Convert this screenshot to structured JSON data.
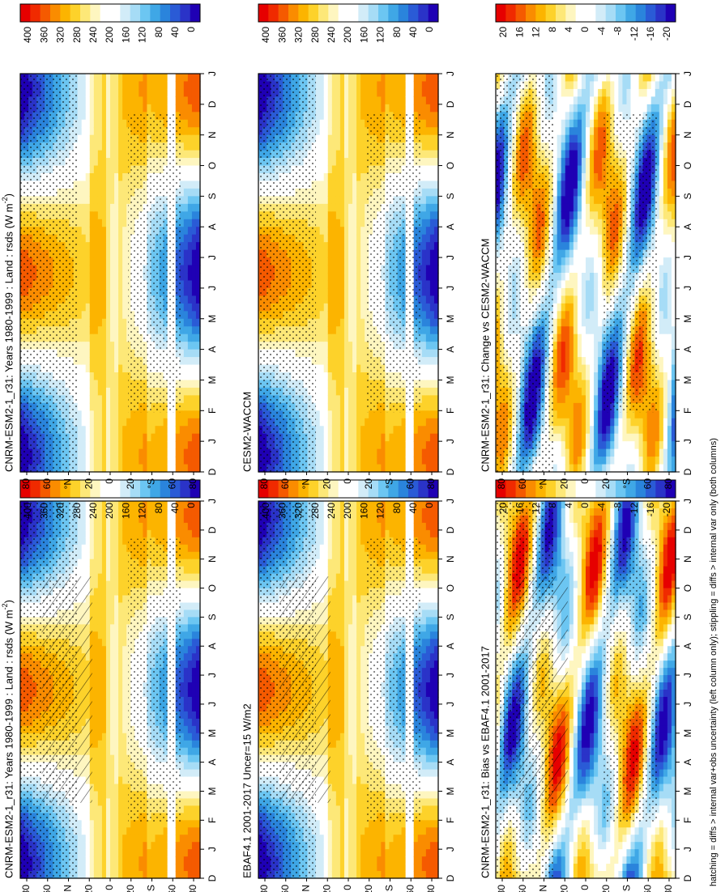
{
  "footer": "hatching = diffs > internal var+obs uncertainty (left column only); stippling = diffs > internal var only (both columns)",
  "colorbars": {
    "abs": {
      "labels": [
        "400",
        "360",
        "320",
        "280",
        "240",
        "200",
        "160",
        "120",
        "80",
        "40",
        "0"
      ],
      "colors": [
        "#e60000",
        "#f02a00",
        "#f55a00",
        "#fa8c00",
        "#fcb400",
        "#fdd22a",
        "#fde878",
        "#fef6c0",
        "#ffffff",
        "#ffffff",
        "#d2ecf8",
        "#a6dcf6",
        "#6cc6f2",
        "#3fa7e6",
        "#2a84dc",
        "#2a5bd6",
        "#2a33c8",
        "#1f00b4"
      ]
    },
    "diff": {
      "labels": [
        "20",
        "16",
        "12",
        "8",
        "4",
        "0",
        "-4",
        "-8",
        "-12",
        "-16",
        "-20"
      ],
      "colors": [
        "#e60000",
        "#f02a00",
        "#f55a00",
        "#fa8c00",
        "#fcb400",
        "#fdd22a",
        "#fde878",
        "#fef6c0",
        "#ffffff",
        "#ffffff",
        "#d2ecf8",
        "#a6dcf6",
        "#6cc6f2",
        "#3fa7e6",
        "#2a84dc",
        "#2a5bd6",
        "#2a33c8",
        "#1f00b4"
      ]
    }
  },
  "axes": {
    "month_ticks": [
      "D",
      "J",
      "F",
      "M",
      "A",
      "M",
      "J",
      "J",
      "A",
      "S",
      "O",
      "N",
      "D",
      "J"
    ],
    "lat_ticks": [
      "80",
      "60",
      "°N",
      "20",
      "0",
      "20",
      "°S",
      "60",
      "80"
    ]
  },
  "panels": [
    {
      "id": "tl",
      "title": "CNRM-ESM2-1_r31: Years 1980-1999 : Land : rsds (W m",
      "title_sup": "-2",
      "title_end": ")",
      "bar": "abs"
    },
    {
      "id": "tr",
      "title": "CNRM-ESM2-1_r31: Years 1980-1999 : Land : rsds (W m",
      "title_sup": "-2",
      "title_end": ")",
      "bar": "abs"
    },
    {
      "id": "ml",
      "title": "EBAF4.1 2001-2017 Uncer=15 W/m2",
      "title_sup": "",
      "title_end": "",
      "bar": "abs"
    },
    {
      "id": "mr",
      "title": "CESM2-WACCM",
      "title_sup": "",
      "title_end": "",
      "bar": "abs"
    },
    {
      "id": "bl",
      "title": "CNRM-ESM2-1_r31: Bias vs EBAF4.1 2001-2017",
      "title_sup": "",
      "title_end": "",
      "bar": "diff"
    },
    {
      "id": "br",
      "title": "CNRM-ESM2-1_r31: Change vs CESM2-WACCM",
      "title_sup": "",
      "title_end": "",
      "bar": "diff"
    }
  ],
  "chart_data": [
    {
      "type": "heatmap",
      "title": "CNRM-ESM2-1_r31: Years 1980-1999 : Land : rsds (W m-2)",
      "x": [
        "D",
        "J",
        "F",
        "M",
        "A",
        "M",
        "J",
        "J",
        "A",
        "S",
        "O",
        "N",
        "D",
        "J"
      ],
      "y": [
        "80N",
        "60N",
        "40N",
        "20N",
        "0",
        "20S",
        "40S",
        "60S",
        "80S"
      ],
      "zlim": [
        0,
        400
      ],
      "hatching": true,
      "stippling": true
    },
    {
      "type": "heatmap",
      "title": "CNRM-ESM2-1_r31: Years 1980-1999 : Land : rsds (W m-2)",
      "x": [
        "D",
        "J",
        "F",
        "M",
        "A",
        "M",
        "J",
        "J",
        "A",
        "S",
        "O",
        "N",
        "D",
        "J"
      ],
      "y": [
        "80N",
        "60N",
        "40N",
        "20N",
        "0",
        "20S",
        "40S",
        "60S",
        "80S"
      ],
      "zlim": [
        0,
        400
      ],
      "hatching": false,
      "stippling": true
    },
    {
      "type": "heatmap",
      "title": "EBAF4.1 2001-2017 Uncer=15 W/m2",
      "x": [
        "D",
        "J",
        "F",
        "M",
        "A",
        "M",
        "J",
        "J",
        "A",
        "S",
        "O",
        "N",
        "D",
        "J"
      ],
      "y": [
        "80N",
        "60N",
        "40N",
        "20N",
        "0",
        "20S",
        "40S",
        "60S",
        "80S"
      ],
      "zlim": [
        0,
        400
      ],
      "hatching": true,
      "stippling": true
    },
    {
      "type": "heatmap",
      "title": "CESM2-WACCM",
      "x": [
        "D",
        "J",
        "F",
        "M",
        "A",
        "M",
        "J",
        "J",
        "A",
        "S",
        "O",
        "N",
        "D",
        "J"
      ],
      "y": [
        "80N",
        "60N",
        "40N",
        "20N",
        "0",
        "20S",
        "40S",
        "60S",
        "80S"
      ],
      "zlim": [
        0,
        400
      ],
      "hatching": false,
      "stippling": true
    },
    {
      "type": "heatmap",
      "title": "CNRM-ESM2-1_r31: Bias vs EBAF4.1 2001-2017",
      "x": [
        "D",
        "J",
        "F",
        "M",
        "A",
        "M",
        "J",
        "J",
        "A",
        "S",
        "O",
        "N",
        "D",
        "J"
      ],
      "y": [
        "80N",
        "60N",
        "40N",
        "20N",
        "0",
        "20S",
        "40S",
        "60S",
        "80S"
      ],
      "zlim": [
        -20,
        20
      ],
      "hatching": true,
      "stippling": true
    },
    {
      "type": "heatmap",
      "title": "CNRM-ESM2-1_r31: Change vs CESM2-WACCM",
      "x": [
        "D",
        "J",
        "F",
        "M",
        "A",
        "M",
        "J",
        "J",
        "A",
        "S",
        "O",
        "N",
        "D",
        "J"
      ],
      "y": [
        "80N",
        "60N",
        "40N",
        "20N",
        "0",
        "20S",
        "40S",
        "60S",
        "80S"
      ],
      "zlim": [
        -20,
        20
      ],
      "hatching": false,
      "stippling": true
    }
  ]
}
